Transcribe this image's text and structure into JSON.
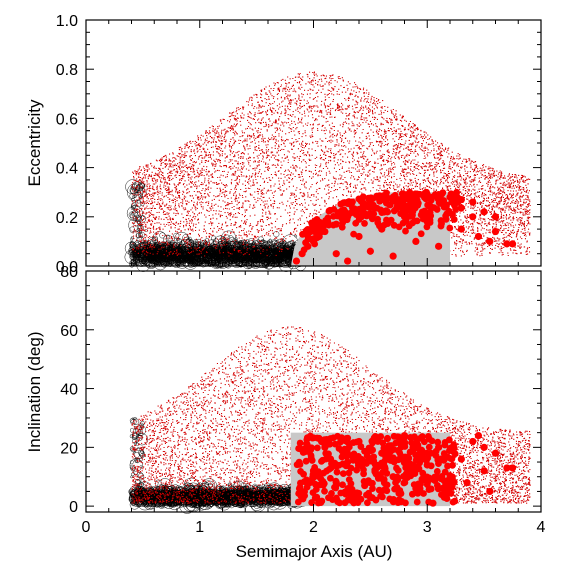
{
  "chart_data": [
    {
      "type": "scatter",
      "title": "",
      "xlabel": "",
      "ylabel": "Eccentricity",
      "xlim": [
        0,
        4
      ],
      "ylim": [
        0.0,
        1.0
      ],
      "yticks": [
        "0.0",
        "0.2",
        "0.4",
        "0.6",
        "0.8",
        "1.0"
      ],
      "colors": {
        "background_population": "#000000",
        "scattered_population": "#e00000",
        "highlight_points": "#ff0000",
        "region": "#c8c8c8"
      },
      "region": {
        "x": [
          1.8,
          3.2
        ],
        "y": [
          0.0,
          0.3
        ],
        "left_edge": "curved"
      },
      "series": [
        {
          "values": [
            [
              1.85,
              0.02
            ],
            [
              1.9,
              0.05
            ],
            [
              1.95,
              0.08
            ],
            [
              2.0,
              0.1
            ],
            [
              2.05,
              0.12
            ],
            [
              2.1,
              0.14
            ],
            [
              2.2,
              0.17
            ],
            [
              2.3,
              0.2
            ],
            [
              2.4,
              0.23
            ],
            [
              2.5,
              0.25
            ],
            [
              2.6,
              0.27
            ],
            [
              2.7,
              0.28
            ],
            [
              2.8,
              0.29
            ],
            [
              2.9,
              0.29
            ],
            [
              3.0,
              0.29
            ],
            [
              3.1,
              0.29
            ],
            [
              3.2,
              0.28
            ],
            [
              3.3,
              0.27
            ],
            [
              3.4,
              0.26
            ],
            [
              3.5,
              0.22
            ],
            [
              3.6,
              0.14
            ],
            [
              3.7,
              0.09
            ],
            [
              3.75,
              0.09
            ],
            [
              2.2,
              0.05
            ],
            [
              2.4,
              0.12
            ],
            [
              2.5,
              0.06
            ],
            [
              2.6,
              0.15
            ],
            [
              2.7,
              0.04
            ],
            [
              2.8,
              0.2
            ],
            [
              2.9,
              0.1
            ],
            [
              3.0,
              0.18
            ],
            [
              3.1,
              0.08
            ],
            [
              2.3,
              0.02
            ],
            [
              2.65,
              0.22
            ],
            [
              3.15,
              0.24
            ],
            [
              3.4,
              0.2
            ],
            [
              3.45,
              0.12
            ],
            [
              3.55,
              0.1
            ],
            [
              3.6,
              0.2
            ],
            [
              3.3,
              0.15
            ]
          ]
        }
      ]
    },
    {
      "type": "scatter",
      "title": "",
      "xlabel": "Semimajor Axis (AU)",
      "ylabel": "Inclination (deg)",
      "xlim": [
        0,
        4
      ],
      "ylim": [
        -2,
        80
      ],
      "xticks": [
        "0",
        "1",
        "2",
        "3",
        "4"
      ],
      "yticks": [
        "0",
        "20",
        "40",
        "60",
        "80"
      ],
      "region": {
        "x": [
          1.8,
          3.2
        ],
        "y": [
          0,
          25
        ]
      },
      "series": [
        {
          "values": [
            [
              1.9,
              5
            ],
            [
              2.0,
              12
            ],
            [
              2.1,
              20
            ],
            [
              2.2,
              8
            ],
            [
              2.3,
              15
            ],
            [
              2.4,
              22
            ],
            [
              2.5,
              3
            ],
            [
              2.6,
              18
            ],
            [
              2.7,
              10
            ],
            [
              2.8,
              24
            ],
            [
              2.9,
              6
            ],
            [
              3.0,
              14
            ],
            [
              3.1,
              20
            ],
            [
              3.2,
              9
            ],
            [
              3.3,
              16
            ],
            [
              3.4,
              22
            ],
            [
              3.45,
              24
            ],
            [
              3.5,
              12
            ],
            [
              3.55,
              5
            ],
            [
              3.6,
              18
            ],
            [
              3.7,
              13
            ],
            [
              3.75,
              13
            ],
            [
              2.05,
              23
            ],
            [
              2.35,
              2
            ],
            [
              2.55,
              11
            ],
            [
              2.75,
              2
            ],
            [
              2.95,
              19
            ],
            [
              3.15,
              3
            ],
            [
              3.35,
              8
            ],
            [
              3.5,
              20
            ],
            [
              2.15,
              16
            ],
            [
              2.45,
              7
            ],
            [
              2.65,
              23
            ],
            [
              2.85,
              13
            ],
            [
              3.05,
              1
            ]
          ]
        }
      ]
    }
  ]
}
